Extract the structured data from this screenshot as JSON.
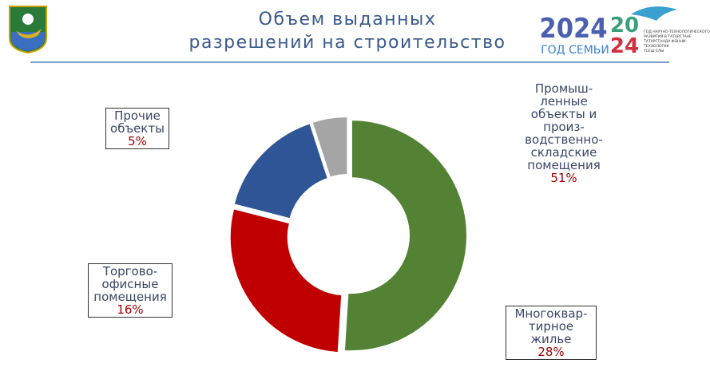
{
  "header": {
    "title": "Объем выданных\nразрешений на строительство",
    "logo_year": "2024",
    "logo_caption": "ГОД СЕМЬИ",
    "logo2_top": "20",
    "logo2_bottom": "24",
    "logo2_text": "ГОД НАУЧНО-ТЕХНОЛОГИЧЕСКОГО\nРАЗВИТИЯ В ТАТАРСТАНЕ\nТАТАРСТАНДА ФӘННИ-ТЕХНОЛОГИК\nҮСЕШ ЕЛЫ"
  },
  "chart_data": {
    "type": "donut",
    "categories": [
      "Промыш-\nленные\nобъекты и\nпроиз-\nводственно-\nскладские\nпомещения",
      "Многоквар-\nтирное жилье",
      "Торгово-\nофисные\nпомещения",
      "Прочие\nобъекты"
    ],
    "values": [
      51,
      28,
      16,
      5
    ],
    "value_labels": [
      "51%",
      "28%",
      "16%",
      "5%"
    ],
    "colors": [
      "#548235",
      "#c00000",
      "#2f5597",
      "#a5a5a5"
    ]
  }
}
